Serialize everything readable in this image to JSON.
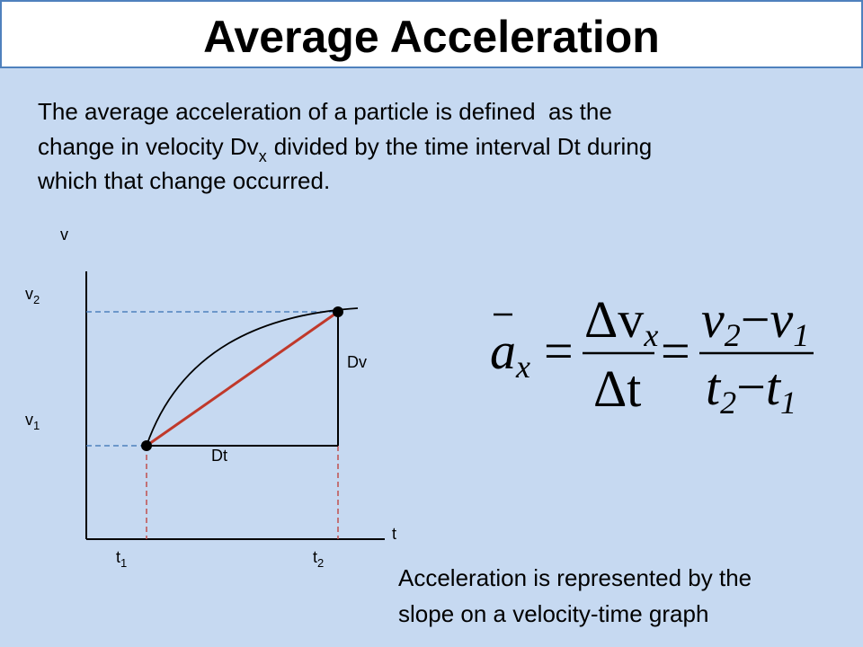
{
  "header": {
    "title": "Average Acceleration"
  },
  "intro": {
    "line1": "The average acceleration of a particle is defined  as the",
    "line2_start": "change in velocity Dv",
    "line2_sub": "x",
    "line2_end": "divided by the time interval Dt during",
    "line3": "which that change occurred."
  },
  "diagram": {
    "v_axis": "v",
    "t_axis": "t",
    "v2": {
      "main": "v",
      "sub": "2"
    },
    "v1": {
      "main": "v",
      "sub": "1"
    },
    "t1": {
      "main": "t",
      "sub": "1"
    },
    "t2": {
      "main": "t",
      "sub": "2"
    },
    "dv": "Dv",
    "dt": "Dt"
  },
  "formula": {
    "a": "a",
    "a_sub": "x",
    "eq1": "=",
    "num1": "Δv",
    "num1_sub": "x",
    "den1": "Δt",
    "eq2": "=",
    "num2_a": "v",
    "num2_a_sub": "2",
    "num2_minus": "−",
    "num2_b": "v",
    "num2_b_sub": "1",
    "den2_a": "t",
    "den2_a_sub": "2",
    "den2_minus": "−",
    "den2_b": "t",
    "den2_b_sub": "1"
  },
  "caption": {
    "line1": "Acceleration is represented by the",
    "line2": "slope on a velocity-time graph"
  }
}
